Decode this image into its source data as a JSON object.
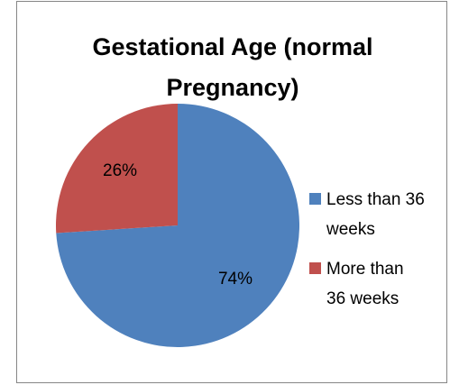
{
  "chart_data": {
    "type": "pie",
    "title": "Gestational Age (normal Pregnancy)",
    "categories": [
      "Less than 36 weeks",
      "More than 36 weeks"
    ],
    "values": [
      74,
      26
    ],
    "value_labels": [
      "74%",
      "26%"
    ],
    "colors": [
      "#4f81bd",
      "#c0504d"
    ],
    "legend": "right"
  }
}
